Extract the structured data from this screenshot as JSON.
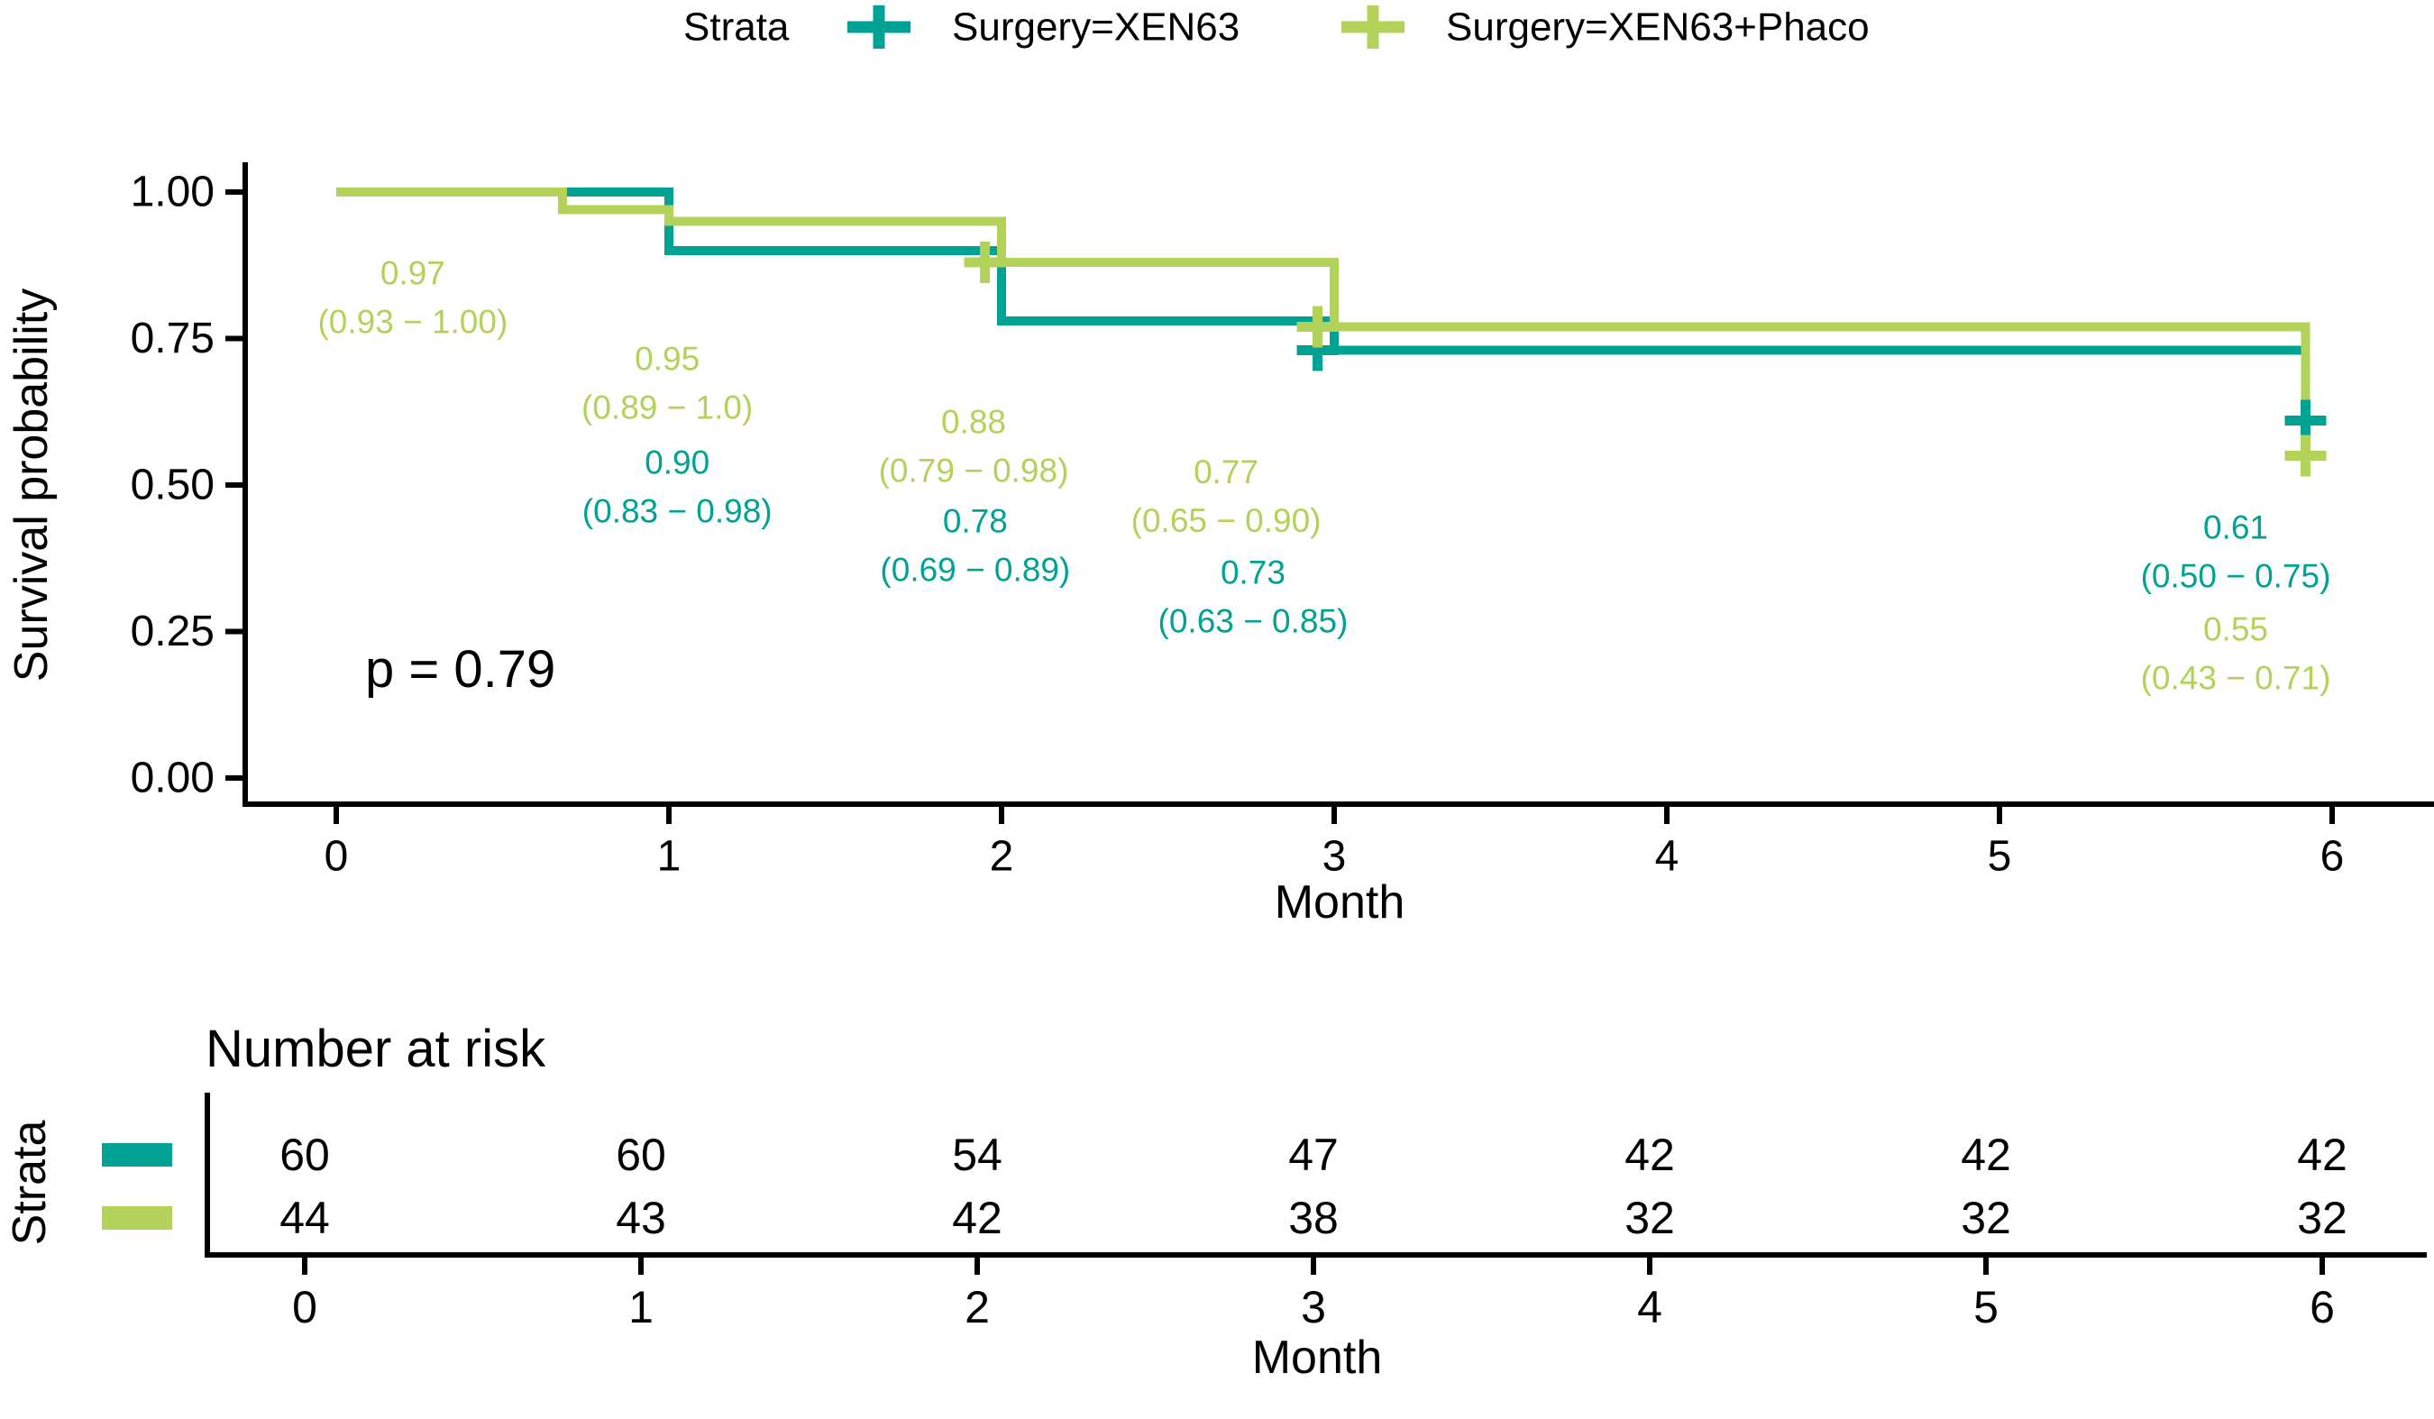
{
  "pvalue": "p = 0.79",
  "legend": {
    "title": "Strata",
    "items": [
      {
        "label": "Surgery=XEN63",
        "color": "#00A294"
      },
      {
        "label": "Surgery=XEN63+Phaco",
        "color": "#B2D25A"
      }
    ]
  },
  "chart_data": {
    "type": "line",
    "subtype": "kaplan-meier-step",
    "title": "",
    "xlabel": "Month",
    "ylabel": "Survival probability",
    "xlim": [
      0,
      6
    ],
    "ylim": [
      0,
      1
    ],
    "grid": "off",
    "legend_position": "top",
    "xticks": [
      0,
      1,
      2,
      3,
      4,
      5,
      6
    ],
    "xtick_labels": [
      "0",
      "1",
      "2",
      "3",
      "4",
      "5",
      "6"
    ],
    "yticks": [
      0,
      0.25,
      0.5,
      0.75,
      1
    ],
    "ytick_labels": [
      "0.00",
      "0.25",
      "0.50",
      "0.75",
      "1.00"
    ],
    "series": [
      {
        "name": "Surgery=XEN63",
        "color": "#00A294",
        "steps": [
          [
            0,
            1.0
          ],
          [
            1,
            1.0
          ],
          [
            1,
            0.9
          ],
          [
            2,
            0.9
          ],
          [
            2,
            0.78
          ],
          [
            3,
            0.78
          ],
          [
            3,
            0.73
          ],
          [
            5.92,
            0.73
          ],
          [
            5.92,
            0.61
          ]
        ],
        "censor_marks": [
          [
            2.95,
            0.73
          ],
          [
            5.92,
            0.61
          ]
        ]
      },
      {
        "name": "Surgery=XEN63+Phaco",
        "color": "#B2D25A",
        "steps": [
          [
            0,
            1.0
          ],
          [
            0.68,
            1.0
          ],
          [
            0.68,
            0.97
          ],
          [
            1,
            0.97
          ],
          [
            1,
            0.95
          ],
          [
            2,
            0.95
          ],
          [
            2,
            0.88
          ],
          [
            3,
            0.88
          ],
          [
            3,
            0.77
          ],
          [
            5.92,
            0.77
          ],
          [
            5.92,
            0.55
          ]
        ],
        "censor_marks": [
          [
            1.95,
            0.88
          ],
          [
            2.95,
            0.77
          ],
          [
            5.92,
            0.55
          ]
        ]
      }
    ],
    "annotations": [
      {
        "series": 1,
        "x": 0.23,
        "y": 0.82,
        "lines": [
          "0.97",
          "(0.93 − 1.00)"
        ]
      },
      {
        "series": 1,
        "x": 0.995,
        "y": 0.674,
        "lines": [
          "0.95",
          "(0.89 − 1.0)"
        ]
      },
      {
        "series": 0,
        "x": 1.025,
        "y": 0.497,
        "lines": [
          "0.90",
          "(0.83 − 0.98)"
        ]
      },
      {
        "series": 1,
        "x": 1.916,
        "y": 0.566,
        "lines": [
          "0.88",
          "(0.79 − 0.98)"
        ]
      },
      {
        "series": 0,
        "x": 1.921,
        "y": 0.397,
        "lines": [
          "0.78",
          "(0.69 − 0.89)"
        ]
      },
      {
        "series": 1,
        "x": 2.675,
        "y": 0.481,
        "lines": [
          "0.77",
          "(0.65 − 0.90)"
        ]
      },
      {
        "series": 0,
        "x": 2.756,
        "y": 0.309,
        "lines": [
          "0.73",
          "(0.63 − 0.85)"
        ]
      },
      {
        "series": 0,
        "x": 5.71,
        "y": 0.386,
        "lines": [
          "0.61",
          "(0.50 − 0.75)"
        ]
      },
      {
        "series": 1,
        "x": 5.71,
        "y": 0.212,
        "lines": [
          "0.55",
          "(0.43 − 0.71)"
        ]
      }
    ]
  },
  "risk_table": {
    "title": "Number at risk",
    "axis_label": "Strata",
    "xlabel": "Month",
    "xticks": [
      0,
      1,
      2,
      3,
      4,
      5,
      6
    ],
    "xtick_labels": [
      "0",
      "1",
      "2",
      "3",
      "4",
      "5",
      "6"
    ],
    "rows": [
      {
        "name": "Surgery=XEN63",
        "color": "#00A294",
        "values": [
          "60",
          "60",
          "54",
          "47",
          "42",
          "42",
          "42"
        ]
      },
      {
        "name": "Surgery=XEN63+Phaco",
        "color": "#B2D25A",
        "values": [
          "44",
          "43",
          "42",
          "38",
          "32",
          "32",
          "32"
        ]
      }
    ]
  }
}
